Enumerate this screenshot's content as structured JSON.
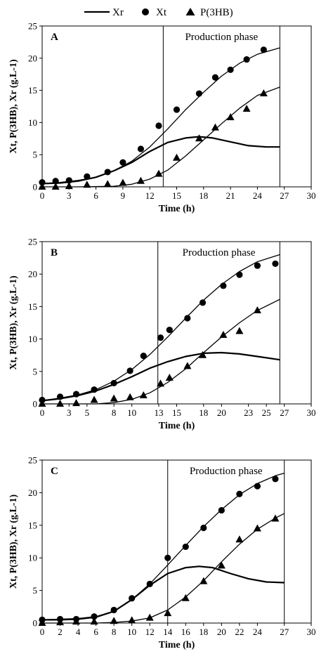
{
  "legend": [
    {
      "label": "Xr",
      "marker": "line"
    },
    {
      "label": "Xt",
      "marker": "circle"
    },
    {
      "label": "P(3HB)",
      "marker": "triangle"
    }
  ],
  "chart_data": [
    {
      "type": "scatter",
      "panel_label": "A",
      "annotation": "Production phase",
      "xlabel": "Time (h)",
      "ylabel": "Xt, P(3HB), Xr (g.L-1)",
      "xlim": [
        0,
        30
      ],
      "ylim": [
        0,
        25
      ],
      "xticks": [
        0,
        3,
        6,
        9,
        12,
        15,
        18,
        21,
        24,
        27,
        30
      ],
      "yticks": [
        0,
        5,
        10,
        15,
        20,
        25
      ],
      "phase_lines_x": [
        13.5,
        26.5
      ],
      "grid": false,
      "series": [
        {
          "name": "Xr",
          "style": "line",
          "x": [
            0,
            2,
            4,
            6,
            8,
            10,
            12,
            14,
            16,
            17.5,
            19,
            21,
            23,
            25,
            26.5
          ],
          "y": [
            0.5,
            0.6,
            0.9,
            1.5,
            2.5,
            3.8,
            5.5,
            6.9,
            7.6,
            7.8,
            7.6,
            7.0,
            6.4,
            6.2,
            6.2
          ]
        },
        {
          "name": "Xt fit",
          "style": "line",
          "x": [
            0,
            2,
            4,
            6,
            8,
            10,
            12,
            14,
            16,
            18,
            20,
            22,
            24,
            26.5
          ],
          "y": [
            0.5,
            0.7,
            1.0,
            1.5,
            2.5,
            4.0,
            6.2,
            9.0,
            12.0,
            14.7,
            17.2,
            19.2,
            20.6,
            21.6
          ]
        },
        {
          "name": "P(3HB) fit",
          "style": "line",
          "x": [
            0,
            4,
            8,
            10,
            12,
            14,
            16,
            18,
            20,
            22,
            24,
            26.5
          ],
          "y": [
            0,
            0,
            0.1,
            0.4,
            1.2,
            2.6,
            4.8,
            7.3,
            9.8,
            12.2,
            14.2,
            15.5
          ]
        },
        {
          "name": "Xt",
          "style": "circle",
          "x": [
            0,
            1.5,
            3,
            5,
            7.3,
            9,
            11,
            13,
            15,
            17.5,
            19.3,
            21,
            22.8,
            24.7
          ],
          "y": [
            0.7,
            0.9,
            1.0,
            1.6,
            2.3,
            3.8,
            5.9,
            9.5,
            12.0,
            14.5,
            17.0,
            18.2,
            19.8,
            21.3
          ]
        },
        {
          "name": "P(3HB)",
          "style": "triangle",
          "x": [
            0,
            1.5,
            3,
            5,
            7.3,
            9,
            11,
            13,
            15,
            17.5,
            19.3,
            21,
            22.8,
            24.7
          ],
          "y": [
            0,
            0,
            0.1,
            0.3,
            0.4,
            0.6,
            0.9,
            2.0,
            4.5,
            7.5,
            9.2,
            10.8,
            12.1,
            14.5
          ]
        }
      ]
    },
    {
      "type": "scatter",
      "panel_label": "B",
      "annotation": "Production phase",
      "xlabel": "Time (h)",
      "ylabel": "Xt, P(3HB), Xr (g.L-1)",
      "xlim": [
        0,
        30
      ],
      "ylim": [
        0,
        25
      ],
      "xticks": [
        0,
        3,
        5,
        8,
        10,
        13,
        15,
        18,
        20,
        23,
        25,
        27,
        30
      ],
      "yticks": [
        0,
        5,
        10,
        15,
        20,
        25
      ],
      "phase_lines_x": [
        12.9,
        26.5
      ],
      "grid": false,
      "series": [
        {
          "name": "Xr",
          "style": "line",
          "x": [
            0,
            2,
            4,
            6,
            8,
            10,
            12,
            14,
            16,
            18,
            20,
            22,
            24,
            26.5
          ],
          "y": [
            0.5,
            0.8,
            1.3,
            2.0,
            3.0,
            4.2,
            5.5,
            6.5,
            7.3,
            7.8,
            7.9,
            7.7,
            7.3,
            6.8
          ]
        },
        {
          "name": "Xt fit",
          "style": "line",
          "x": [
            0,
            2,
            4,
            6,
            8,
            10,
            12,
            14,
            16,
            18,
            20,
            22,
            24,
            26.5
          ],
          "y": [
            0.5,
            0.9,
            1.4,
            2.2,
            3.5,
            5.3,
            7.6,
            10.3,
            13.2,
            16.0,
            18.4,
            20.4,
            21.9,
            23.0
          ]
        },
        {
          "name": "P(3HB) fit",
          "style": "line",
          "x": [
            0,
            6,
            8,
            10,
            12,
            14,
            16,
            18,
            20,
            22,
            24,
            26.5
          ],
          "y": [
            0,
            0,
            0.2,
            0.7,
            1.7,
            3.3,
            5.4,
            7.9,
            10.3,
            12.5,
            14.4,
            16.1
          ]
        },
        {
          "name": "Xt",
          "style": "circle",
          "x": [
            0,
            2,
            3.8,
            5.8,
            8,
            9.8,
            11.3,
            13.2,
            14.2,
            16.2,
            17.9,
            20.2,
            22,
            24,
            26
          ],
          "y": [
            0.6,
            1.1,
            1.5,
            2.2,
            3.2,
            5.1,
            7.4,
            10.2,
            11.4,
            13.2,
            15.6,
            18.2,
            19.9,
            21.3,
            21.6
          ]
        },
        {
          "name": "P(3HB)",
          "style": "triangle",
          "x": [
            0,
            2,
            3.8,
            5.8,
            8,
            9.8,
            11.3,
            13.2,
            14.2,
            16.2,
            17.9,
            20.2,
            22,
            24
          ],
          "y": [
            0,
            0,
            0.1,
            0.6,
            0.8,
            1.0,
            1.3,
            3.1,
            4.0,
            5.8,
            7.5,
            10.6,
            11.2,
            14.4
          ]
        }
      ]
    },
    {
      "type": "scatter",
      "panel_label": "C",
      "annotation": "Production phase",
      "xlabel": "Time (h)",
      "ylabel": "Xt, P(3HB), Xr (g.L-1)",
      "xlim": [
        0,
        30
      ],
      "ylim": [
        0,
        25
      ],
      "xticks": [
        0,
        2,
        4,
        6,
        8,
        10,
        12,
        14,
        16,
        18,
        20,
        22,
        24,
        27,
        30
      ],
      "yticks": [
        0,
        5,
        10,
        15,
        20,
        25
      ],
      "phase_lines_x": [
        14,
        27
      ],
      "grid": false,
      "series": [
        {
          "name": "Xr",
          "style": "line",
          "x": [
            0,
            2,
            4,
            6,
            8,
            10,
            12,
            14,
            16,
            17.5,
            19,
            21,
            23,
            25,
            27
          ],
          "y": [
            0.5,
            0.5,
            0.6,
            0.9,
            1.8,
            3.6,
            5.8,
            7.6,
            8.5,
            8.7,
            8.5,
            7.6,
            6.8,
            6.3,
            6.2
          ]
        },
        {
          "name": "Xt fit",
          "style": "line",
          "x": [
            0,
            2,
            4,
            6,
            8,
            10,
            12,
            14,
            16,
            18,
            20,
            22,
            24,
            26,
            27
          ],
          "y": [
            0.5,
            0.6,
            0.7,
            1.0,
            1.8,
            3.6,
            6.0,
            8.9,
            11.9,
            14.8,
            17.4,
            19.7,
            21.4,
            22.6,
            23.0
          ]
        },
        {
          "name": "P(3HB) fit",
          "style": "line",
          "x": [
            0,
            6,
            8,
            10,
            12,
            14,
            16,
            18,
            20,
            22,
            24,
            26,
            27
          ],
          "y": [
            0,
            0,
            0.1,
            0.3,
            0.8,
            2.0,
            4.0,
            6.5,
            9.4,
            12.1,
            14.4,
            16.1,
            16.8
          ]
        },
        {
          "name": "Xt",
          "style": "circle",
          "x": [
            0,
            2,
            3.8,
            5.8,
            8,
            10,
            12,
            14,
            16,
            18,
            20,
            22,
            24,
            26
          ],
          "y": [
            0.5,
            0.6,
            0.6,
            1.0,
            2.0,
            3.8,
            6.0,
            10.0,
            11.7,
            14.6,
            17.3,
            19.8,
            21.0,
            22.1
          ]
        },
        {
          "name": "P(3HB)",
          "style": "triangle",
          "x": [
            0,
            2,
            3.8,
            5.8,
            8,
            10,
            12,
            14,
            16,
            18,
            20,
            22,
            24,
            26
          ],
          "y": [
            0,
            0.1,
            0.2,
            0.2,
            0.3,
            0.4,
            0.8,
            1.5,
            3.8,
            6.4,
            8.8,
            12.8,
            14.5,
            16.0
          ]
        }
      ]
    }
  ]
}
